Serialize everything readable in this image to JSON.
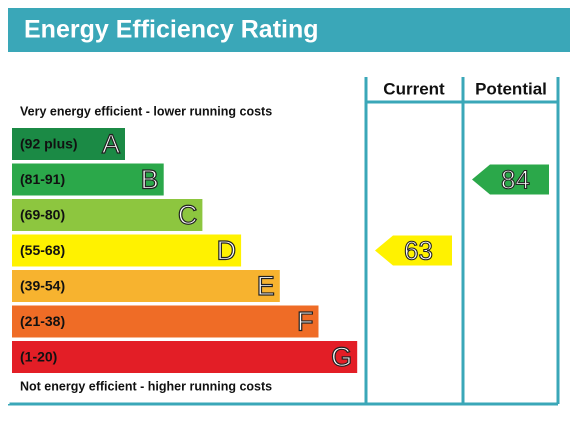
{
  "header": {
    "title": "Energy Efficiency Rating"
  },
  "columns": [
    "Current",
    "Potential"
  ],
  "top_note": "Very energy efficient - lower running costs",
  "bottom_note": "Not energy efficient - higher running costs",
  "bands": [
    {
      "range": "(92 plus)",
      "letter": "A",
      "color": "#1b8a45"
    },
    {
      "range": "(81-91)",
      "letter": "B",
      "color": "#2ba84a"
    },
    {
      "range": "(69-80)",
      "letter": "C",
      "color": "#8dc63f"
    },
    {
      "range": "(55-68)",
      "letter": "D",
      "color": "#fff200"
    },
    {
      "range": "(39-54)",
      "letter": "E",
      "color": "#f7b32f"
    },
    {
      "range": "(21-38)",
      "letter": "F",
      "color": "#ef6c26"
    },
    {
      "range": "(1-20)",
      "letter": "G",
      "color": "#e31e26"
    }
  ],
  "current": 63,
  "potential": 84
}
